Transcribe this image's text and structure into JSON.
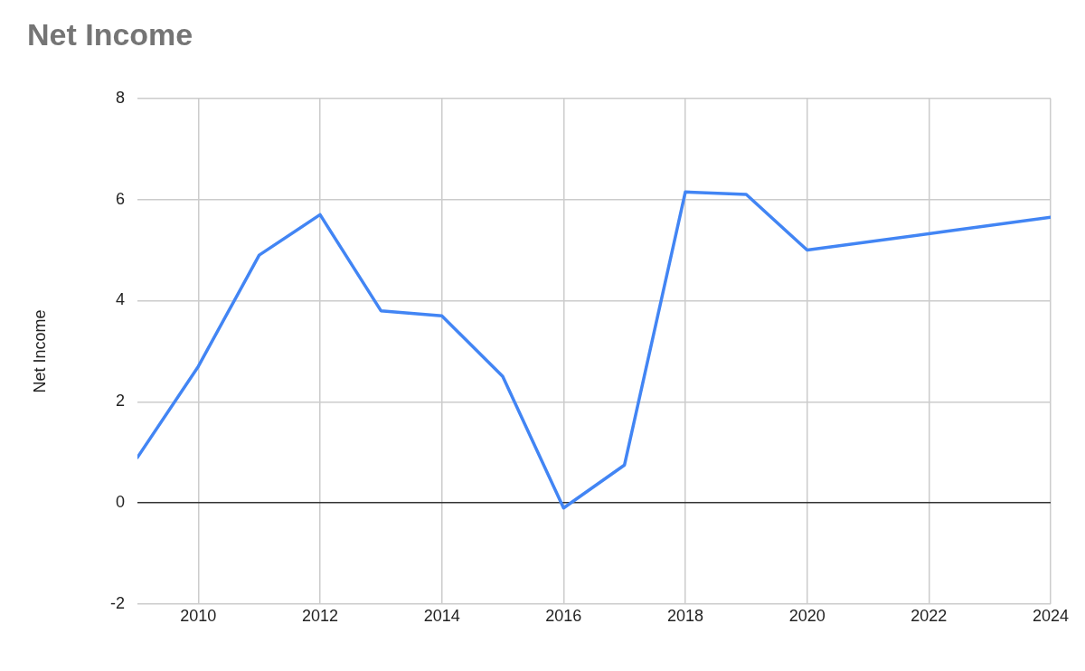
{
  "chart_data": {
    "type": "line",
    "title": "Net Income",
    "ylabel": "Net Income",
    "x": [
      2009,
      2010,
      2011,
      2012,
      2013,
      2014,
      2015,
      2016,
      2017,
      2018,
      2019,
      2020,
      2024
    ],
    "series": [
      {
        "color": "#4285f4",
        "values": [
          0.9,
          2.7,
          4.9,
          5.7,
          3.8,
          3.7,
          2.5,
          -0.1,
          0.75,
          6.15,
          6.1,
          5.0,
          5.65
        ]
      }
    ],
    "xlim": [
      2009,
      2024
    ],
    "xticks": [
      2010,
      2012,
      2014,
      2016,
      2018,
      2020,
      2022,
      2024
    ],
    "ylim": [
      -2,
      8
    ],
    "yticks": [
      -2,
      0,
      2,
      4,
      6,
      8
    ],
    "grid": true,
    "legend": false,
    "marker": "none",
    "line_style": "solid"
  }
}
